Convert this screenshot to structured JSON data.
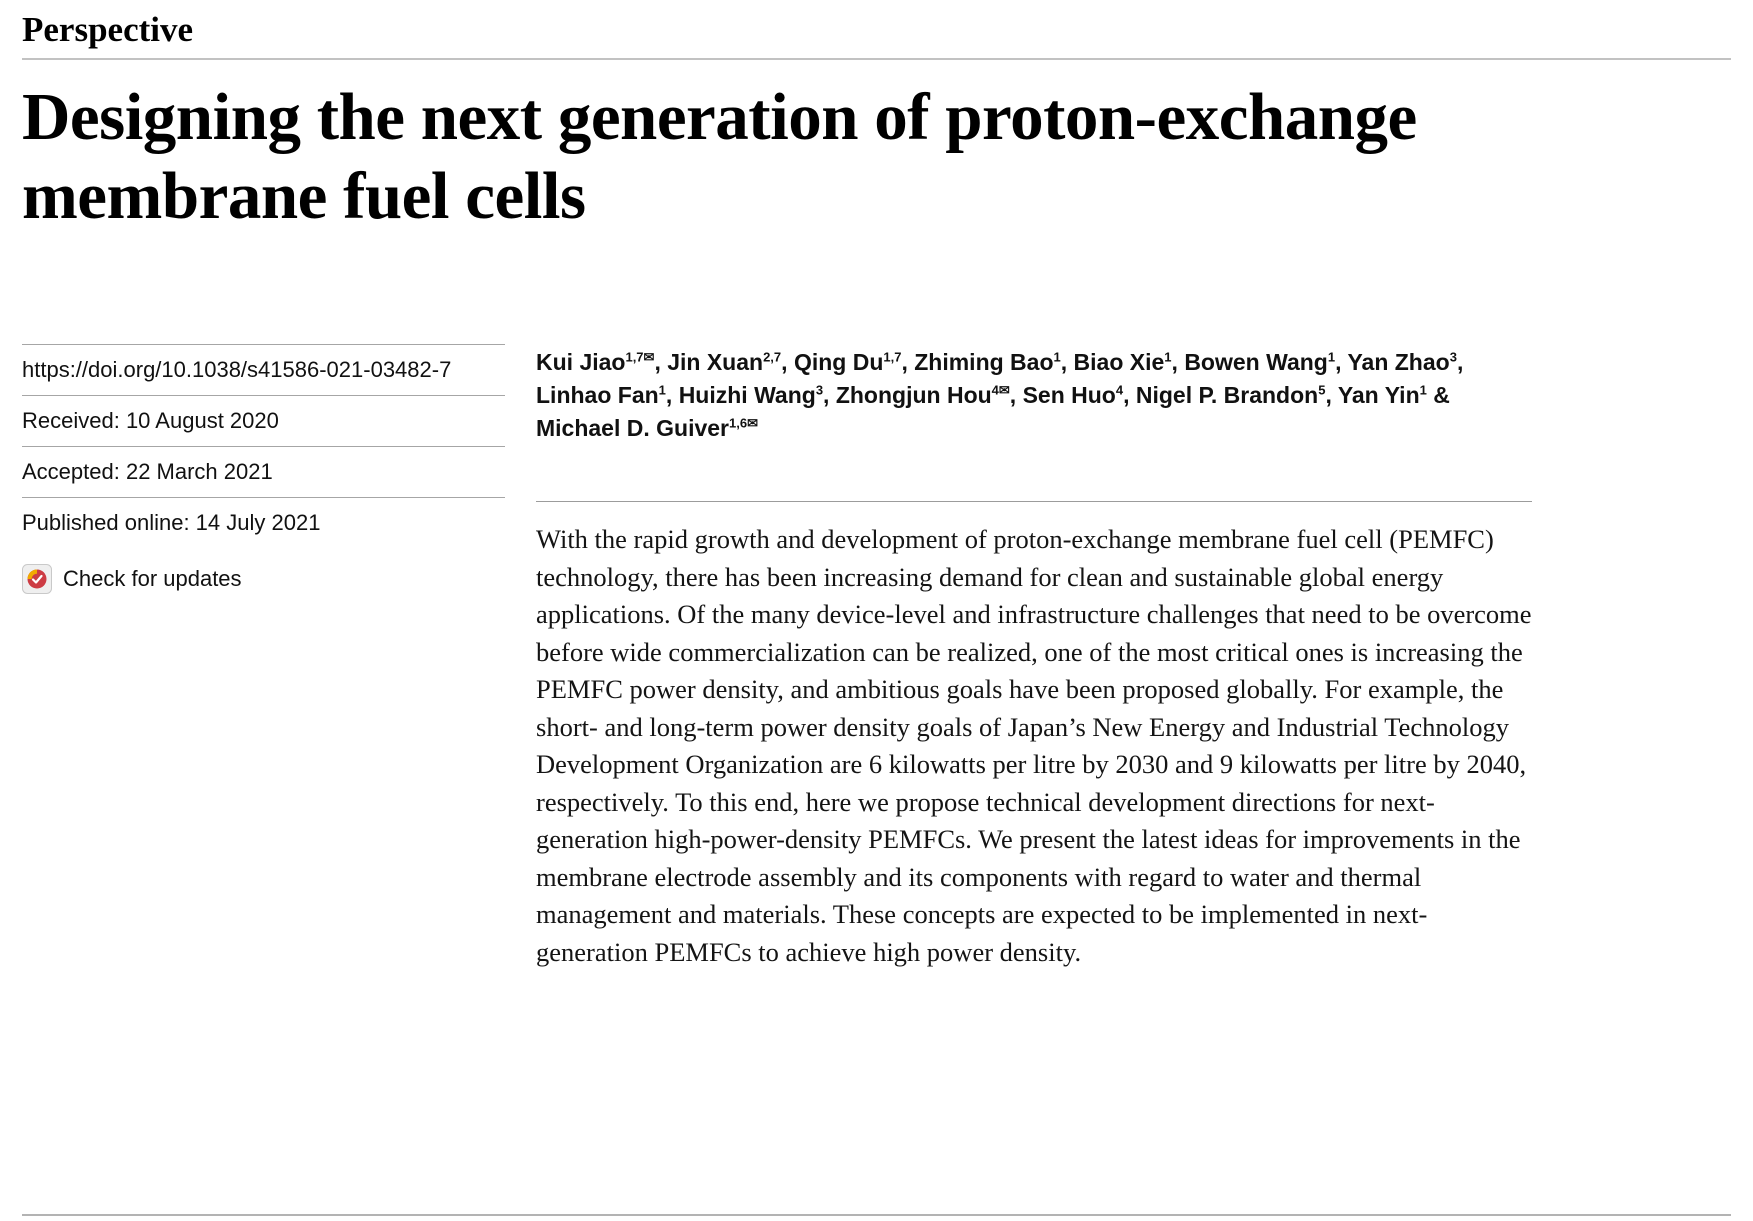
{
  "article": {
    "kicker": "Perspective",
    "title": "Designing the next generation of proton-exchange membrane fuel cells",
    "doi": "https://doi.org/10.1038/s41586-021-03482-7",
    "dates": {
      "received": "Received: 10 August 2020",
      "accepted": "Accepted: 22 March 2021",
      "published": "Published online: 14 July 2021"
    },
    "check_for_updates": "Check for updates",
    "authors": [
      {
        "name": "Kui Jiao",
        "sup": "1,7",
        "corresponding": true
      },
      {
        "name": "Jin Xuan",
        "sup": "2,7",
        "corresponding": false
      },
      {
        "name": "Qing Du",
        "sup": "1,7",
        "corresponding": false
      },
      {
        "name": "Zhiming Bao",
        "sup": "1",
        "corresponding": false
      },
      {
        "name": "Biao Xie",
        "sup": "1",
        "corresponding": false
      },
      {
        "name": "Bowen Wang",
        "sup": "1",
        "corresponding": false
      },
      {
        "name": "Yan Zhao",
        "sup": "3",
        "corresponding": false
      },
      {
        "name": "Linhao Fan",
        "sup": "1",
        "corresponding": false
      },
      {
        "name": "Huizhi Wang",
        "sup": "3",
        "corresponding": false
      },
      {
        "name": "Zhongjun Hou",
        "sup": "4",
        "corresponding": true
      },
      {
        "name": "Sen Huo",
        "sup": "4",
        "corresponding": false
      },
      {
        "name": "Nigel P. Brandon",
        "sup": "5",
        "corresponding": false
      },
      {
        "name": "Yan Yin",
        "sup": "1",
        "corresponding": false
      },
      {
        "name": "Michael D. Guiver",
        "sup": "1,6",
        "corresponding": true
      }
    ],
    "abstract": "With the rapid growth and development of proton-exchange membrane fuel cell (PEMFC) technology, there has been increasing demand for clean and sustainable global energy applications. Of the many device-level and infrastructure challenges that need to be overcome before wide commercialization can be realized, one of the most critical ones is increasing the PEMFC power density, and ambitious goals have been proposed globally. For example, the short- and long-term power density goals of Japan’s New Energy and Industrial Technology Development Organization are 6 kilowatts per litre by 2030 and 9 kilowatts per litre by 2040, respectively. To this end, here we propose technical development directions for next-generation high-power-density PEMFCs. We present the latest ideas for improvements in the membrane electrode assembly and its components with regard to water and thermal management and materials. These concepts are expected to be implemented in next-generation PEMFCs to achieve high power density."
  }
}
